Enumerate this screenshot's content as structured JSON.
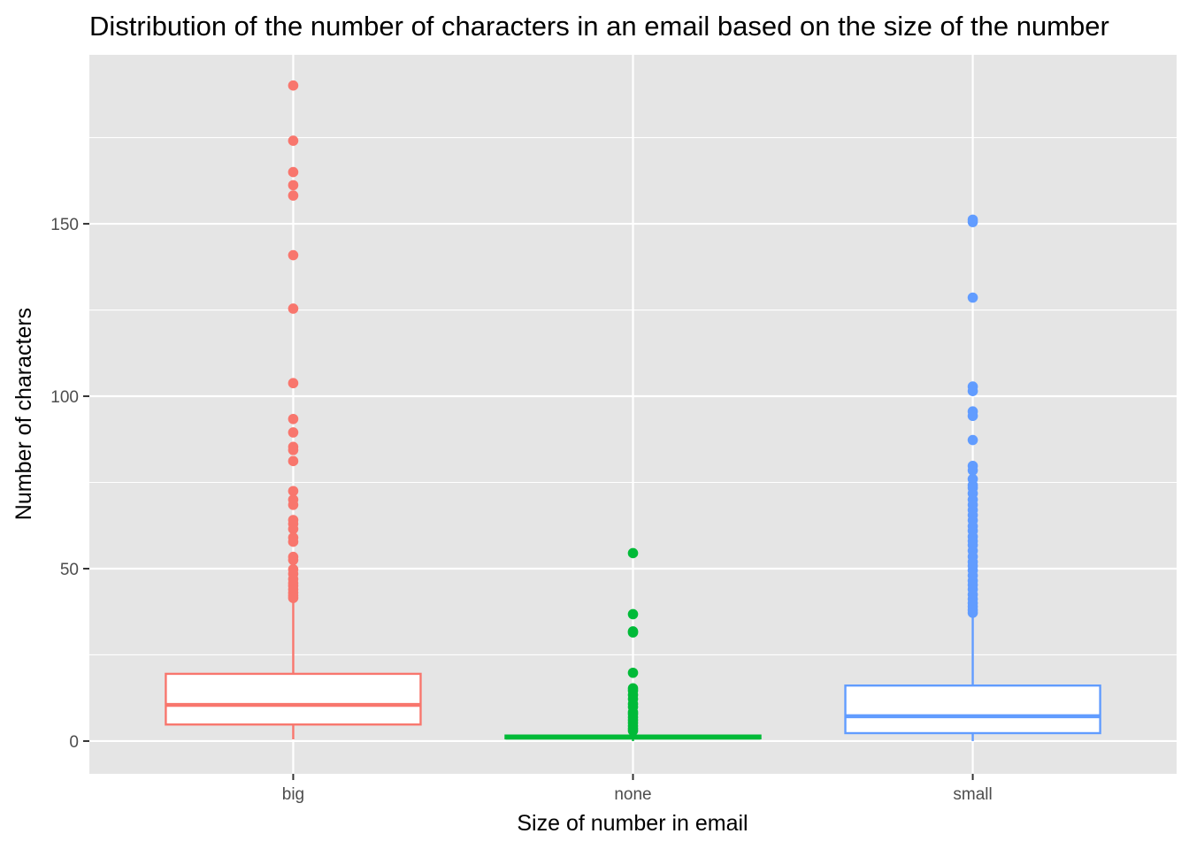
{
  "chart_data": {
    "type": "boxplot",
    "title": "Distribution of the number of characters in an email based on the size of the number",
    "xlabel": "Size of number in email",
    "ylabel": "Number of characters",
    "categories": [
      "big",
      "none",
      "small"
    ],
    "colors": [
      "#F8766D",
      "#00BA38",
      "#619CFF"
    ],
    "panel_background": "#E5E5E5",
    "grid_color": "#FFFFFF",
    "grid": true,
    "legend": "none",
    "ylim": [
      -9.5,
      199
    ],
    "yticks": [
      0,
      50,
      100,
      150
    ],
    "yticklabels": [
      "0",
      "50",
      "100",
      "150"
    ],
    "boxes": [
      {
        "category": "big",
        "min": 0.5,
        "q1": 4.8,
        "median": 10.5,
        "q3": 19.5,
        "max": 41.3,
        "outliers": [
          190.1,
          174.1,
          165.0,
          161.2,
          158.2,
          140.9,
          125.4,
          103.8,
          93.4,
          89.5,
          85.3,
          84.4,
          81.2,
          72.5,
          70.0,
          68.5,
          64.1,
          63.0,
          61.5,
          59.0,
          57.8,
          53.4,
          52.5,
          49.8,
          48.5,
          47.0,
          45.8,
          45.0,
          44.0,
          43.0,
          42.2,
          41.5
        ]
      },
      {
        "category": "none",
        "min": 0.0,
        "q1": 0.8,
        "median": 1.0,
        "q3": 1.6,
        "max": 2.5,
        "outliers": [
          54.5,
          36.8,
          31.8,
          31.5,
          19.8,
          15.3,
          14.6,
          13.4,
          12.2,
          10.8,
          9.9,
          8.4,
          7.8,
          6.9,
          6.1,
          5.3,
          4.4,
          3.6,
          3.0
        ]
      },
      {
        "category": "small",
        "min": 0.0,
        "q1": 2.3,
        "median": 7.2,
        "q3": 16.1,
        "max": 36.5,
        "outliers": [
          151.2,
          150.5,
          128.6,
          102.8,
          101.5,
          95.6,
          94.3,
          87.3,
          79.8,
          78.5,
          76.0,
          74.2,
          73.4,
          71.8,
          70.0,
          68.5,
          67.0,
          65.5,
          64.0,
          62.3,
          61.0,
          59.3,
          58.0,
          56.8,
          55.2,
          53.5,
          52.0,
          50.8,
          49.5,
          48.0,
          46.5,
          45.3,
          44.0,
          42.5,
          41.2,
          40.0,
          39.0,
          38.0,
          37.2
        ]
      }
    ]
  }
}
